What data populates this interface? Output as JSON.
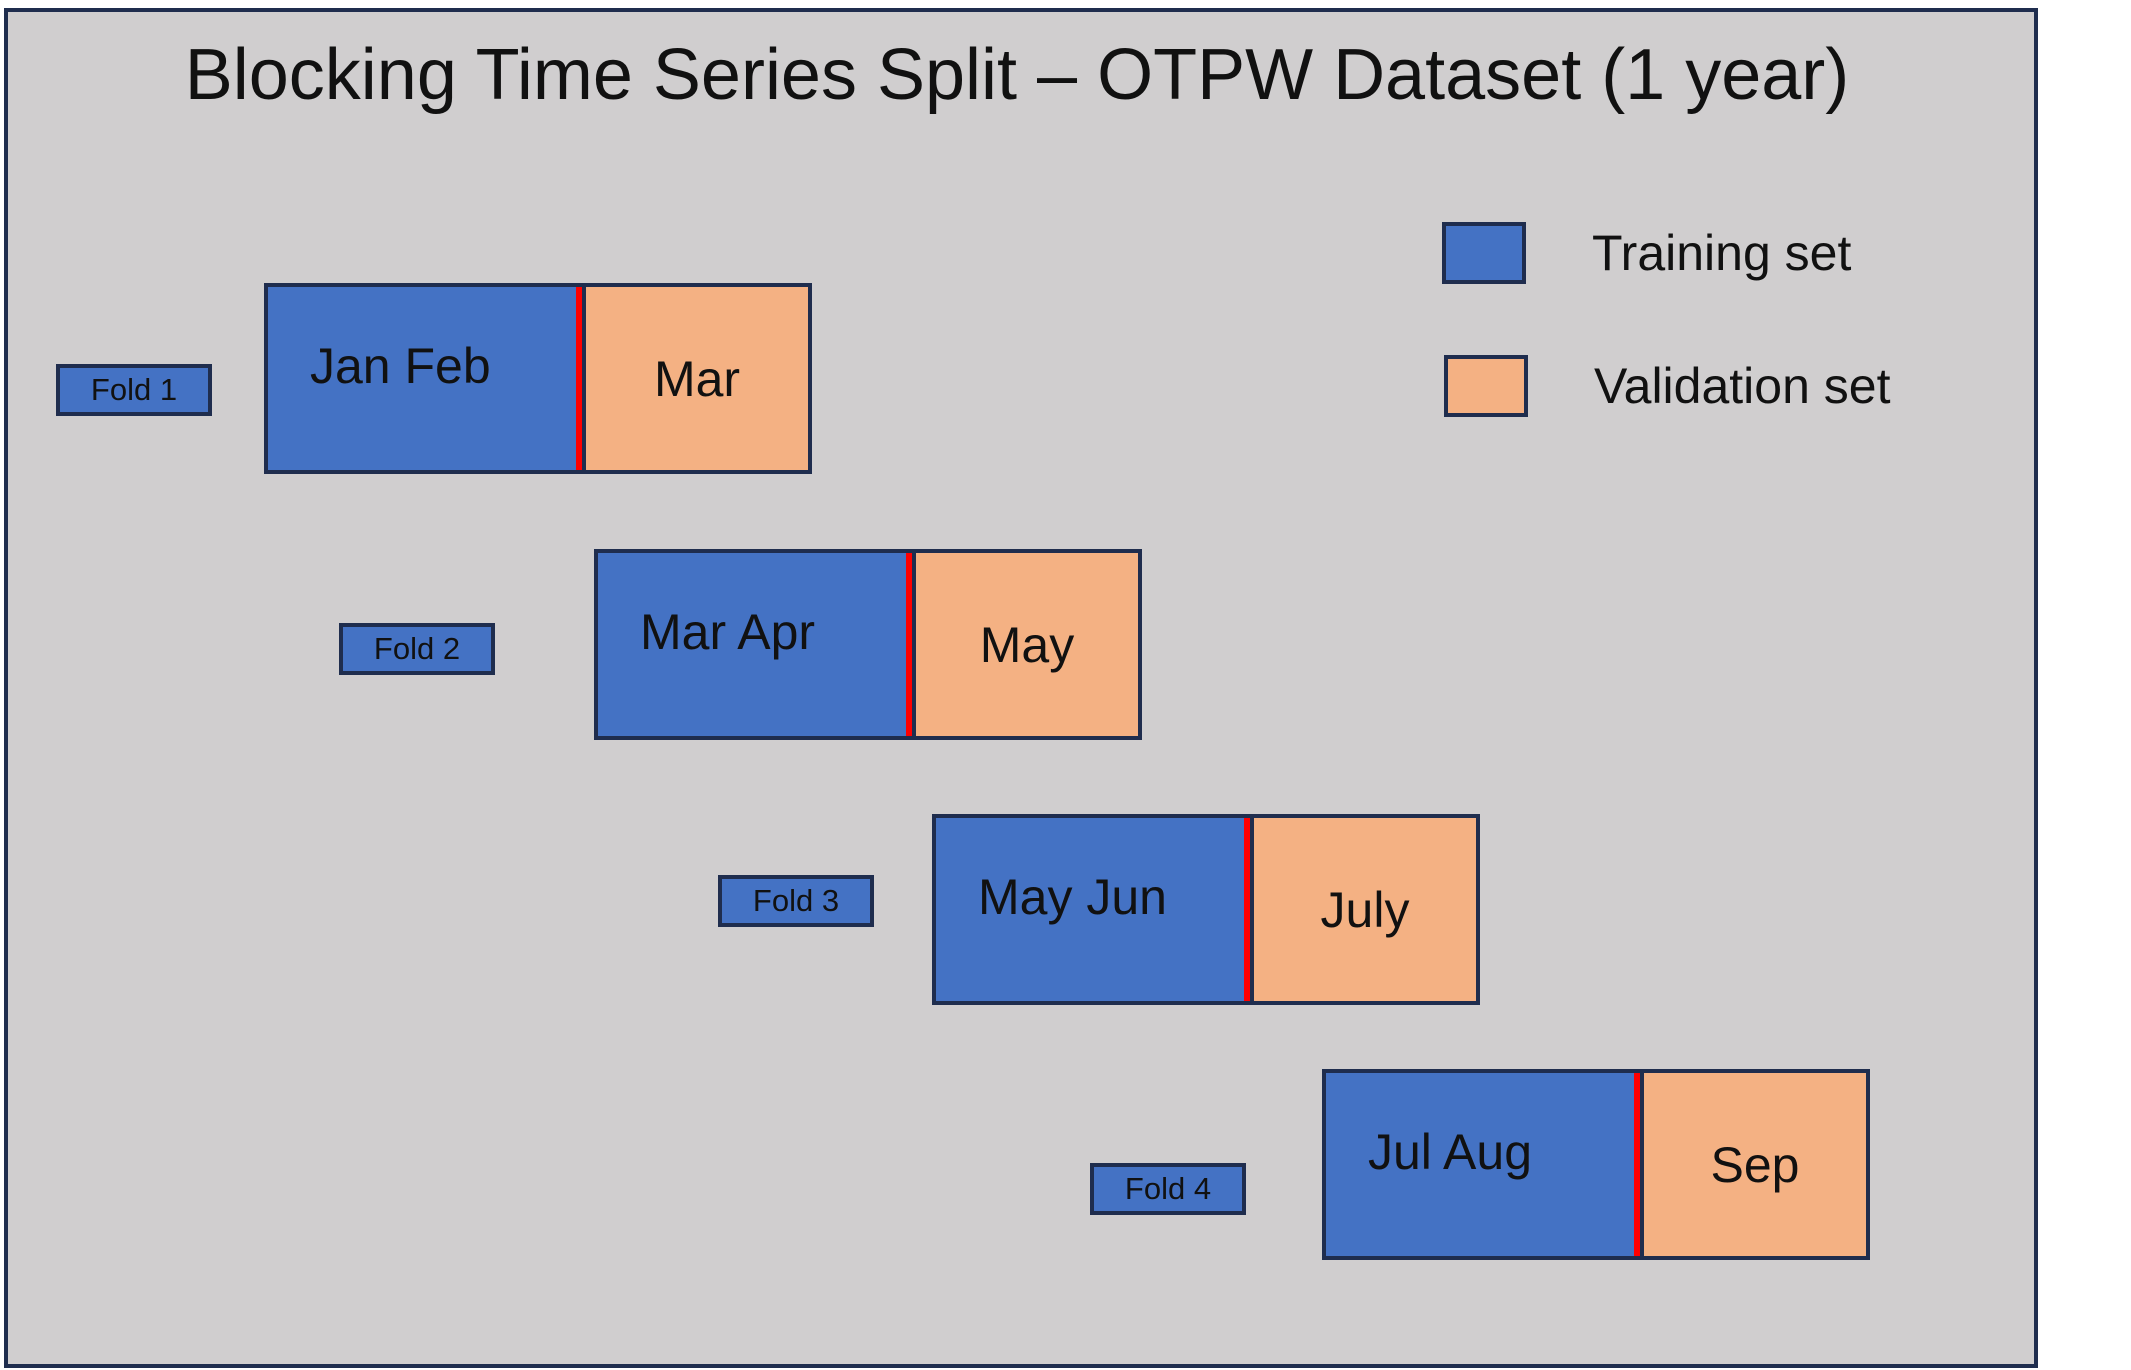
{
  "title": "Blocking Time Series Split – OTPW Dataset (1 year)",
  "colors": {
    "training": "#4472c4",
    "validation": "#f4b183",
    "split_marker": "#ff0000",
    "border": "#1f2d4e",
    "background": "#d0cecf"
  },
  "legend": {
    "training_label": "Training set",
    "validation_label": "Validation set"
  },
  "folds": [
    {
      "label": "Fold 1",
      "train": "Jan Feb",
      "validation": "Mar"
    },
    {
      "label": "Fold 2",
      "train": "Mar Apr",
      "validation": "May"
    },
    {
      "label": "Fold 3",
      "train": "May Jun",
      "validation": "July"
    },
    {
      "label": "Fold 4",
      "train": "Jul Aug",
      "validation": "Sep"
    }
  ]
}
